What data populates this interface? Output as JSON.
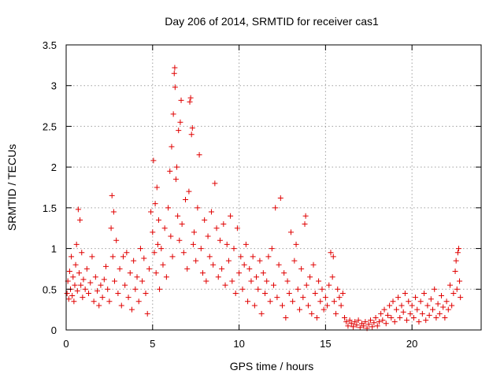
{
  "chart_data": {
    "type": "scatter",
    "title": "Day 206 of 2014, SRMTID for receiver cas1",
    "xlabel": "GPS time / hours",
    "ylabel": "SRMTID / TECUs",
    "xlim": [
      0,
      24
    ],
    "ylim": [
      0,
      3.5
    ],
    "xticks": [
      0,
      5,
      10,
      15,
      20
    ],
    "xtick_labels": [
      "0",
      "5",
      "10",
      "15",
      "20"
    ],
    "yticks": [
      0,
      0.5,
      1,
      1.5,
      2,
      2.5,
      3,
      3.5
    ],
    "ytick_labels": [
      "0",
      "0.5",
      "1",
      "1.5",
      "2",
      "2.5",
      "3",
      "3.5"
    ],
    "grid": true,
    "marker": "plus",
    "color": "#e00000",
    "series": [
      {
        "name": "cas1",
        "points": [
          [
            0.05,
            0.45
          ],
          [
            0.1,
            0.6
          ],
          [
            0.15,
            0.38
          ],
          [
            0.2,
            0.72
          ],
          [
            0.25,
            0.5
          ],
          [
            0.3,
            0.9
          ],
          [
            0.35,
            0.42
          ],
          [
            0.4,
            0.65
          ],
          [
            0.45,
            0.35
          ],
          [
            0.5,
            0.55
          ],
          [
            0.55,
            0.8
          ],
          [
            0.6,
            1.05
          ],
          [
            0.65,
            0.48
          ],
          [
            0.7,
            1.48
          ],
          [
            0.75,
            0.7
          ],
          [
            0.8,
            1.35
          ],
          [
            0.85,
            0.55
          ],
          [
            0.9,
            0.95
          ],
          [
            0.95,
            0.4
          ],
          [
            1.0,
            0.62
          ],
          [
            1.1,
            0.5
          ],
          [
            1.2,
            0.75
          ],
          [
            1.3,
            0.45
          ],
          [
            1.4,
            0.58
          ],
          [
            1.5,
            0.9
          ],
          [
            1.6,
            0.35
          ],
          [
            1.7,
            0.65
          ],
          [
            1.8,
            0.48
          ],
          [
            1.9,
            0.3
          ],
          [
            2.0,
            0.55
          ],
          [
            2.1,
            0.4
          ],
          [
            2.2,
            0.62
          ],
          [
            2.3,
            0.78
          ],
          [
            2.4,
            0.5
          ],
          [
            2.5,
            0.35
          ],
          [
            2.6,
            1.25
          ],
          [
            2.65,
            1.65
          ],
          [
            2.7,
            0.9
          ],
          [
            2.75,
            1.45
          ],
          [
            2.8,
            0.6
          ],
          [
            2.9,
            1.1
          ],
          [
            3.0,
            0.45
          ],
          [
            3.1,
            0.75
          ],
          [
            3.2,
            0.3
          ],
          [
            3.3,
            0.9
          ],
          [
            3.4,
            0.55
          ],
          [
            3.5,
            0.95
          ],
          [
            3.6,
            0.4
          ],
          [
            3.7,
            0.7
          ],
          [
            3.8,
            0.25
          ],
          [
            3.9,
            0.85
          ],
          [
            4.0,
            0.5
          ],
          [
            4.1,
            0.65
          ],
          [
            4.2,
            0.35
          ],
          [
            4.3,
            1.0
          ],
          [
            4.4,
            0.6
          ],
          [
            4.5,
            0.88
          ],
          [
            4.6,
            0.45
          ],
          [
            4.7,
            0.2
          ],
          [
            4.8,
            0.75
          ],
          [
            4.9,
            1.45
          ],
          [
            5.0,
            1.2
          ],
          [
            5.05,
            2.08
          ],
          [
            5.1,
            0.95
          ],
          [
            5.15,
            1.55
          ],
          [
            5.2,
            0.7
          ],
          [
            5.25,
            1.75
          ],
          [
            5.3,
            1.05
          ],
          [
            5.35,
            1.35
          ],
          [
            5.4,
            0.5
          ],
          [
            5.5,
            1.0
          ],
          [
            5.6,
            0.8
          ],
          [
            5.7,
            1.25
          ],
          [
            5.8,
            0.65
          ],
          [
            5.9,
            1.5
          ],
          [
            6.0,
            1.95
          ],
          [
            6.05,
            1.15
          ],
          [
            6.1,
            2.25
          ],
          [
            6.15,
            0.9
          ],
          [
            6.2,
            2.65
          ],
          [
            6.25,
            3.15
          ],
          [
            6.28,
            3.22
          ],
          [
            6.3,
            2.98
          ],
          [
            6.35,
            1.85
          ],
          [
            6.4,
            2.0
          ],
          [
            6.45,
            1.4
          ],
          [
            6.5,
            2.45
          ],
          [
            6.55,
            1.1
          ],
          [
            6.6,
            2.55
          ],
          [
            6.65,
            2.82
          ],
          [
            6.7,
            1.3
          ],
          [
            6.8,
            0.95
          ],
          [
            6.9,
            1.6
          ],
          [
            7.0,
            0.75
          ],
          [
            7.1,
            1.7
          ],
          [
            7.15,
            2.8
          ],
          [
            7.2,
            2.85
          ],
          [
            7.25,
            2.4
          ],
          [
            7.3,
            2.48
          ],
          [
            7.35,
            1.05
          ],
          [
            7.4,
            1.2
          ],
          [
            7.5,
            0.85
          ],
          [
            7.6,
            1.5
          ],
          [
            7.7,
            2.15
          ],
          [
            7.8,
            1.0
          ],
          [
            7.9,
            0.7
          ],
          [
            8.0,
            1.35
          ],
          [
            8.1,
            0.6
          ],
          [
            8.2,
            1.15
          ],
          [
            8.3,
            0.9
          ],
          [
            8.4,
            1.45
          ],
          [
            8.5,
            0.8
          ],
          [
            8.6,
            1.8
          ],
          [
            8.7,
            1.25
          ],
          [
            8.8,
            0.65
          ],
          [
            8.9,
            1.1
          ],
          [
            9.0,
            0.75
          ],
          [
            9.1,
            1.3
          ],
          [
            9.2,
            0.55
          ],
          [
            9.3,
            1.05
          ],
          [
            9.4,
            0.85
          ],
          [
            9.5,
            1.4
          ],
          [
            9.6,
            0.6
          ],
          [
            9.7,
            1.0
          ],
          [
            9.8,
            0.45
          ],
          [
            9.9,
            1.25
          ],
          [
            10.0,
            0.7
          ],
          [
            10.1,
            0.9
          ],
          [
            10.2,
            0.5
          ],
          [
            10.3,
            0.8
          ],
          [
            10.4,
            1.05
          ],
          [
            10.5,
            0.35
          ],
          [
            10.6,
            0.75
          ],
          [
            10.7,
            0.6
          ],
          [
            10.8,
            0.9
          ],
          [
            10.9,
            0.3
          ],
          [
            11.0,
            0.65
          ],
          [
            11.1,
            0.5
          ],
          [
            11.2,
            0.85
          ],
          [
            11.3,
            0.2
          ],
          [
            11.4,
            0.7
          ],
          [
            11.5,
            0.45
          ],
          [
            11.6,
            0.6
          ],
          [
            11.7,
            0.9
          ],
          [
            11.8,
            0.35
          ],
          [
            11.9,
            1.0
          ],
          [
            12.0,
            0.55
          ],
          [
            12.1,
            1.5
          ],
          [
            12.2,
            0.4
          ],
          [
            12.3,
            0.8
          ],
          [
            12.4,
            1.62
          ],
          [
            12.5,
            0.3
          ],
          [
            12.6,
            0.7
          ],
          [
            12.7,
            0.15
          ],
          [
            12.8,
            0.6
          ],
          [
            12.9,
            0.45
          ],
          [
            13.0,
            1.2
          ],
          [
            13.1,
            0.35
          ],
          [
            13.2,
            0.85
          ],
          [
            13.3,
            1.05
          ],
          [
            13.4,
            0.5
          ],
          [
            13.5,
            0.25
          ],
          [
            13.6,
            0.75
          ],
          [
            13.7,
            0.4
          ],
          [
            13.8,
            1.3
          ],
          [
            13.85,
            1.4
          ],
          [
            13.9,
            0.55
          ],
          [
            14.0,
            0.3
          ],
          [
            14.1,
            0.65
          ],
          [
            14.2,
            0.2
          ],
          [
            14.3,
            0.8
          ],
          [
            14.4,
            0.45
          ],
          [
            14.5,
            0.15
          ],
          [
            14.6,
            0.6
          ],
          [
            14.7,
            0.35
          ],
          [
            14.8,
            0.5
          ],
          [
            14.9,
            0.25
          ],
          [
            15.0,
            0.4
          ],
          [
            15.1,
            0.3
          ],
          [
            15.2,
            0.55
          ],
          [
            15.3,
            0.95
          ],
          [
            15.4,
            0.65
          ],
          [
            15.45,
            0.9
          ],
          [
            15.5,
            0.35
          ],
          [
            15.6,
            0.2
          ],
          [
            15.7,
            0.5
          ],
          [
            15.8,
            0.4
          ],
          [
            15.9,
            0.3
          ],
          [
            16.0,
            0.45
          ],
          [
            16.1,
            0.15
          ],
          [
            16.2,
            0.1
          ],
          [
            16.3,
            0.05
          ],
          [
            16.4,
            0.12
          ],
          [
            16.5,
            0.08
          ],
          [
            16.6,
            0.04
          ],
          [
            16.7,
            0.1
          ],
          [
            16.8,
            0.06
          ],
          [
            16.9,
            0.12
          ],
          [
            17.0,
            0.03
          ],
          [
            17.1,
            0.08
          ],
          [
            17.2,
            0.05
          ],
          [
            17.3,
            0.1
          ],
          [
            17.4,
            0.02
          ],
          [
            17.5,
            0.07
          ],
          [
            17.6,
            0.12
          ],
          [
            17.7,
            0.04
          ],
          [
            17.8,
            0.09
          ],
          [
            17.9,
            0.15
          ],
          [
            18.0,
            0.05
          ],
          [
            18.1,
            0.1
          ],
          [
            18.2,
            0.2
          ],
          [
            18.3,
            0.12
          ],
          [
            18.4,
            0.25
          ],
          [
            18.5,
            0.08
          ],
          [
            18.6,
            0.18
          ],
          [
            18.7,
            0.3
          ],
          [
            18.8,
            0.15
          ],
          [
            18.9,
            0.35
          ],
          [
            19.0,
            0.1
          ],
          [
            19.1,
            0.25
          ],
          [
            19.2,
            0.4
          ],
          [
            19.3,
            0.15
          ],
          [
            19.4,
            0.3
          ],
          [
            19.5,
            0.22
          ],
          [
            19.6,
            0.45
          ],
          [
            19.7,
            0.12
          ],
          [
            19.8,
            0.35
          ],
          [
            19.9,
            0.2
          ],
          [
            20.0,
            0.3
          ],
          [
            20.1,
            0.15
          ],
          [
            20.2,
            0.4
          ],
          [
            20.3,
            0.25
          ],
          [
            20.4,
            0.1
          ],
          [
            20.5,
            0.35
          ],
          [
            20.6,
            0.2
          ],
          [
            20.7,
            0.45
          ],
          [
            20.8,
            0.12
          ],
          [
            20.9,
            0.3
          ],
          [
            21.0,
            0.18
          ],
          [
            21.1,
            0.38
          ],
          [
            21.2,
            0.25
          ],
          [
            21.3,
            0.5
          ],
          [
            21.4,
            0.15
          ],
          [
            21.5,
            0.32
          ],
          [
            21.6,
            0.2
          ],
          [
            21.7,
            0.42
          ],
          [
            21.8,
            0.28
          ],
          [
            21.9,
            0.15
          ],
          [
            22.0,
            0.35
          ],
          [
            22.1,
            0.25
          ],
          [
            22.2,
            0.55
          ],
          [
            22.3,
            0.3
          ],
          [
            22.4,
            0.45
          ],
          [
            22.5,
            0.72
          ],
          [
            22.55,
            0.85
          ],
          [
            22.6,
            0.5
          ],
          [
            22.65,
            0.95
          ],
          [
            22.7,
            1.0
          ],
          [
            22.75,
            0.6
          ],
          [
            22.8,
            0.4
          ]
        ]
      }
    ]
  }
}
